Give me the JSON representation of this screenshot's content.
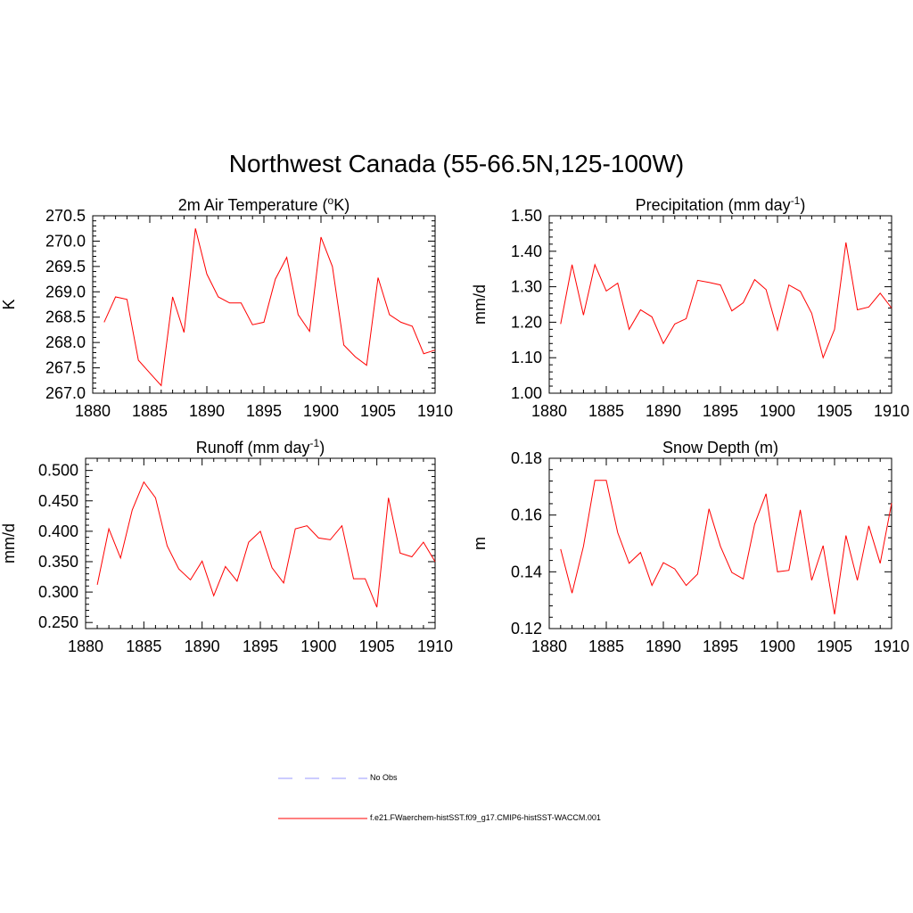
{
  "title": "Northwest Canada (55-66.5N,125-100W)",
  "legend": {
    "entries": [
      {
        "label": "No Obs",
        "color": "#9999ff",
        "style": "dashed"
      },
      {
        "label": "f.e21.FWaerchem-histSST.f09_g17.CMIP6-histSST-WACCM.001",
        "color": "#ff0000",
        "style": "solid"
      }
    ]
  },
  "chart_data": [
    {
      "type": "line",
      "title": "2m Air Temperature (oK)",
      "title_parts": {
        "pre": "2m Air Temperature (",
        "sup": "o",
        "post": "K)"
      },
      "xlabel": "",
      "ylabel": "K",
      "xlim": [
        1880,
        1910
      ],
      "ylim": [
        267.0,
        270.5
      ],
      "xticks": [
        1880,
        1885,
        1890,
        1895,
        1900,
        1905,
        1910
      ],
      "yticks": [
        "267.0",
        "267.5",
        "268.0",
        "268.5",
        "269.0",
        "269.5",
        "270.0",
        "270.5"
      ],
      "x": [
        1881,
        1882,
        1883,
        1884,
        1885,
        1886,
        1887,
        1888,
        1889,
        1890,
        1891,
        1892,
        1893,
        1894,
        1895,
        1896,
        1897,
        1898,
        1899,
        1900,
        1901,
        1902,
        1903,
        1904,
        1905,
        1906,
        1907,
        1908,
        1909,
        1910
      ],
      "series": [
        {
          "color": "#ff0000",
          "values": [
            268.4,
            268.9,
            268.85,
            267.65,
            267.4,
            267.15,
            268.9,
            268.2,
            270.25,
            269.35,
            268.9,
            268.78,
            268.78,
            268.35,
            268.4,
            269.25,
            269.68,
            268.55,
            268.22,
            270.08,
            269.5,
            267.95,
            267.72,
            267.55,
            269.28,
            268.55,
            268.4,
            268.32,
            267.78,
            267.85
          ]
        }
      ]
    },
    {
      "type": "line",
      "title": "Precipitation (mm day-1)",
      "title_parts": {
        "pre": "Precipitation (mm day",
        "sup": "-1",
        "post": ")"
      },
      "xlabel": "",
      "ylabel": "mm/d",
      "xlim": [
        1880,
        1910
      ],
      "ylim": [
        1.0,
        1.5
      ],
      "xticks": [
        1880,
        1885,
        1890,
        1895,
        1900,
        1905,
        1910
      ],
      "yticks": [
        "1.00",
        "1.10",
        "1.20",
        "1.30",
        "1.40",
        "1.50"
      ],
      "x": [
        1881,
        1882,
        1883,
        1884,
        1885,
        1886,
        1887,
        1888,
        1889,
        1890,
        1891,
        1892,
        1893,
        1894,
        1895,
        1896,
        1897,
        1898,
        1899,
        1900,
        1901,
        1902,
        1903,
        1904,
        1905,
        1906,
        1907,
        1908,
        1909,
        1910
      ],
      "series": [
        {
          "color": "#ff0000",
          "values": [
            1.195,
            1.362,
            1.22,
            1.362,
            1.288,
            1.31,
            1.18,
            1.235,
            1.215,
            1.14,
            1.195,
            1.21,
            1.318,
            1.312,
            1.305,
            1.232,
            1.255,
            1.32,
            1.292,
            1.178,
            1.305,
            1.287,
            1.225,
            1.1,
            1.18,
            1.425,
            1.235,
            1.243,
            1.282,
            1.24
          ]
        }
      ]
    },
    {
      "type": "line",
      "title": "Runoff (mm day-1)",
      "title_parts": {
        "pre": "Runoff (mm day",
        "sup": "-1",
        "post": ")"
      },
      "xlabel": "",
      "ylabel": "mm/d",
      "xlim": [
        1880,
        1910
      ],
      "ylim": [
        0.24,
        0.52
      ],
      "xticks": [
        1880,
        1885,
        1890,
        1895,
        1900,
        1905,
        1910
      ],
      "yticks": [
        "0.250",
        "0.300",
        "0.350",
        "0.400",
        "0.450",
        "0.500"
      ],
      "x": [
        1881,
        1882,
        1883,
        1884,
        1885,
        1886,
        1887,
        1888,
        1889,
        1890,
        1891,
        1892,
        1893,
        1894,
        1895,
        1896,
        1897,
        1898,
        1899,
        1900,
        1901,
        1902,
        1903,
        1904,
        1905,
        1906,
        1907,
        1908,
        1909,
        1910
      ],
      "series": [
        {
          "color": "#ff0000",
          "values": [
            0.312,
            0.404,
            0.356,
            0.435,
            0.481,
            0.455,
            0.376,
            0.338,
            0.32,
            0.351,
            0.294,
            0.342,
            0.318,
            0.382,
            0.4,
            0.34,
            0.315,
            0.404,
            0.409,
            0.389,
            0.386,
            0.409,
            0.322,
            0.322,
            0.275,
            0.455,
            0.364,
            0.358,
            0.382,
            0.35
          ]
        }
      ]
    },
    {
      "type": "line",
      "title": "Snow Depth (m)",
      "title_parts": {
        "pre": "Snow Depth (m)",
        "sup": "",
        "post": ""
      },
      "xlabel": "",
      "ylabel": "m",
      "xlim": [
        1880,
        1910
      ],
      "ylim": [
        0.12,
        0.18
      ],
      "xticks": [
        1880,
        1885,
        1890,
        1895,
        1900,
        1905,
        1910
      ],
      "yticks": [
        "0.12",
        "0.14",
        "0.16",
        "0.18"
      ],
      "x": [
        1881,
        1882,
        1883,
        1884,
        1885,
        1886,
        1887,
        1888,
        1889,
        1890,
        1891,
        1892,
        1893,
        1894,
        1895,
        1896,
        1897,
        1898,
        1899,
        1900,
        1901,
        1902,
        1903,
        1904,
        1905,
        1906,
        1907,
        1908,
        1909,
        1910
      ],
      "series": [
        {
          "color": "#ff0000",
          "values": [
            0.148,
            0.1325,
            0.149,
            0.1722,
            0.1722,
            0.1538,
            0.143,
            0.1468,
            0.1352,
            0.1432,
            0.141,
            0.1352,
            0.1392,
            0.1622,
            0.149,
            0.1398,
            0.1375,
            0.1568,
            0.1675,
            0.14,
            0.1405,
            0.1618,
            0.137,
            0.1492,
            0.125,
            0.1528,
            0.137,
            0.1562,
            0.143,
            0.1642
          ]
        }
      ]
    }
  ]
}
